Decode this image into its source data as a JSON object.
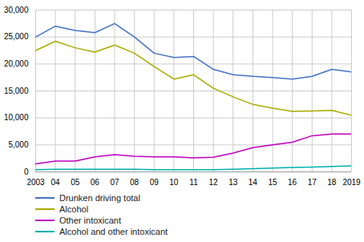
{
  "chart_data": {
    "type": "line",
    "x": [
      2003,
      2004,
      2005,
      2006,
      2007,
      2008,
      2009,
      2010,
      2011,
      2012,
      2013,
      2014,
      2015,
      2016,
      2017,
      2018,
      2019
    ],
    "series": [
      {
        "name": "Drunken driving total",
        "color": "#4472C4",
        "values": [
          25000,
          27000,
          26200,
          25800,
          27500,
          25000,
          22000,
          21200,
          21400,
          19000,
          18000,
          17700,
          17500,
          17200,
          17700,
          19000,
          18500
        ]
      },
      {
        "name": "Alcohol",
        "color": "#AAAA00",
        "values": [
          22500,
          24200,
          23000,
          22200,
          23500,
          22000,
          19500,
          17200,
          18000,
          15500,
          13900,
          12500,
          11800,
          11200,
          11300,
          11400,
          10500
        ]
      },
      {
        "name": "Other intoxicant",
        "color": "#C000C0",
        "values": [
          1500,
          2000,
          2000,
          2800,
          3200,
          2900,
          2800,
          2800,
          2600,
          2700,
          3500,
          4500,
          5000,
          5500,
          6700,
          7000,
          7000
        ]
      },
      {
        "name": "Alcohol and other intoxicant",
        "color": "#00B0B0",
        "values": [
          400,
          500,
          500,
          500,
          500,
          500,
          400,
          400,
          400,
          400,
          500,
          600,
          700,
          800,
          900,
          1000,
          1100
        ]
      }
    ],
    "xlim": [
      2003,
      2019
    ],
    "xticks": [
      2003,
      {
        "value": 2004,
        "label": "04"
      },
      {
        "value": 2005,
        "label": "05"
      },
      {
        "value": 2006,
        "label": "06"
      },
      {
        "value": 2007,
        "label": "07"
      },
      {
        "value": 2008,
        "label": "08"
      },
      {
        "value": 2009,
        "label": "09"
      },
      {
        "value": 2010,
        "label": "10"
      },
      {
        "value": 2011,
        "label": "11"
      },
      {
        "value": 2012,
        "label": "12"
      },
      {
        "value": 2013,
        "label": "13"
      },
      {
        "value": 2014,
        "label": "14"
      },
      {
        "value": 2015,
        "label": "15"
      },
      {
        "value": 2016,
        "label": "16"
      },
      {
        "value": 2017,
        "label": "17"
      },
      {
        "value": 2018,
        "label": "18"
      },
      2019
    ],
    "ylim": [
      0,
      30000
    ],
    "yticks": [
      0,
      {
        "value": 5000,
        "label": "5,000"
      },
      {
        "value": 10000,
        "label": "10,000"
      },
      {
        "value": 15000,
        "label": "15,000"
      },
      {
        "value": 20000,
        "label": "20,000"
      },
      {
        "value": 25000,
        "label": "25,000"
      },
      {
        "value": 30000,
        "label": "30,000"
      }
    ],
    "grid": true,
    "legend": "below"
  }
}
